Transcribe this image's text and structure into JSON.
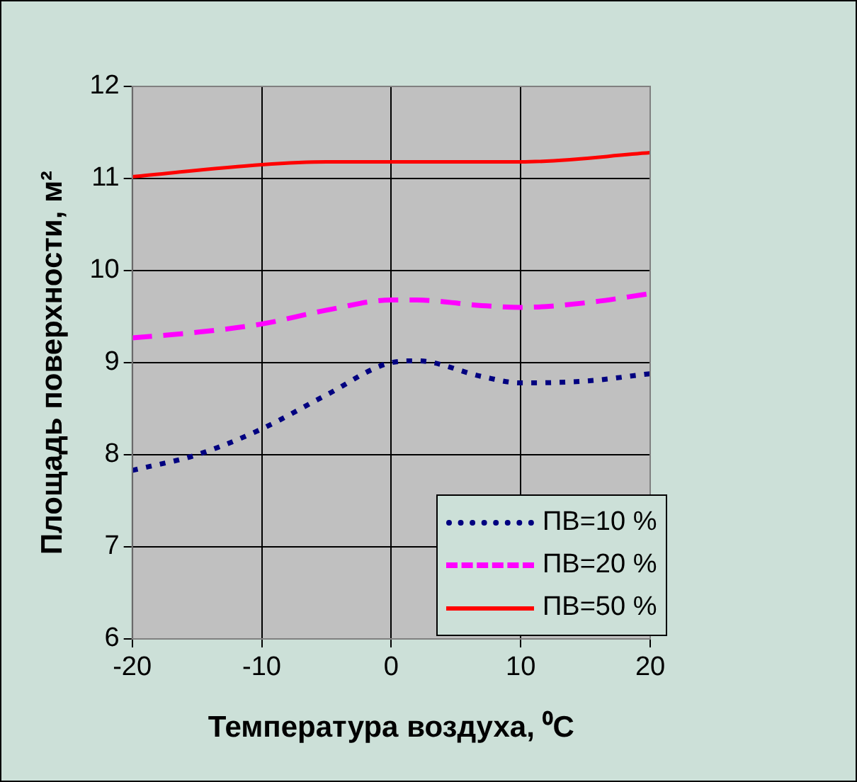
{
  "chart_data": {
    "type": "line",
    "xlabel": "Температура воздуха, ⁰C",
    "ylabel": "Площадь поверхности, м²",
    "xlim": [
      -20,
      20
    ],
    "xticks": [
      -20,
      -10,
      0,
      10,
      20
    ],
    "ylim": [
      6,
      12
    ],
    "yticks": [
      6,
      7,
      8,
      9,
      10,
      11,
      12
    ],
    "grid": true,
    "legend": "bottom right",
    "marker": "none",
    "series": [
      {
        "name": "ПВ=10 %",
        "color": "#000080",
        "line_style": "dotted",
        "x": [
          -20,
          -15,
          -10,
          -5,
          0,
          2,
          7,
          10,
          15,
          20
        ],
        "values": [
          7.83,
          8.0,
          8.28,
          8.65,
          9.0,
          9.02,
          8.85,
          8.78,
          8.8,
          8.88
        ]
      },
      {
        "name": "ПВ=20 %",
        "color": "#ff00ff",
        "line_style": "dashed",
        "x": [
          -20,
          -15,
          -10,
          -5,
          0,
          2,
          7,
          10,
          15,
          20
        ],
        "values": [
          9.27,
          9.33,
          9.42,
          9.57,
          9.68,
          9.68,
          9.62,
          9.6,
          9.65,
          9.75
        ]
      },
      {
        "name": "ПВ=50 %",
        "color": "#ff0000",
        "line_style": "solid",
        "x": [
          -20,
          -10,
          -5,
          0,
          10,
          20
        ],
        "values": [
          11.02,
          11.15,
          11.18,
          11.18,
          11.18,
          11.28
        ]
      }
    ]
  }
}
